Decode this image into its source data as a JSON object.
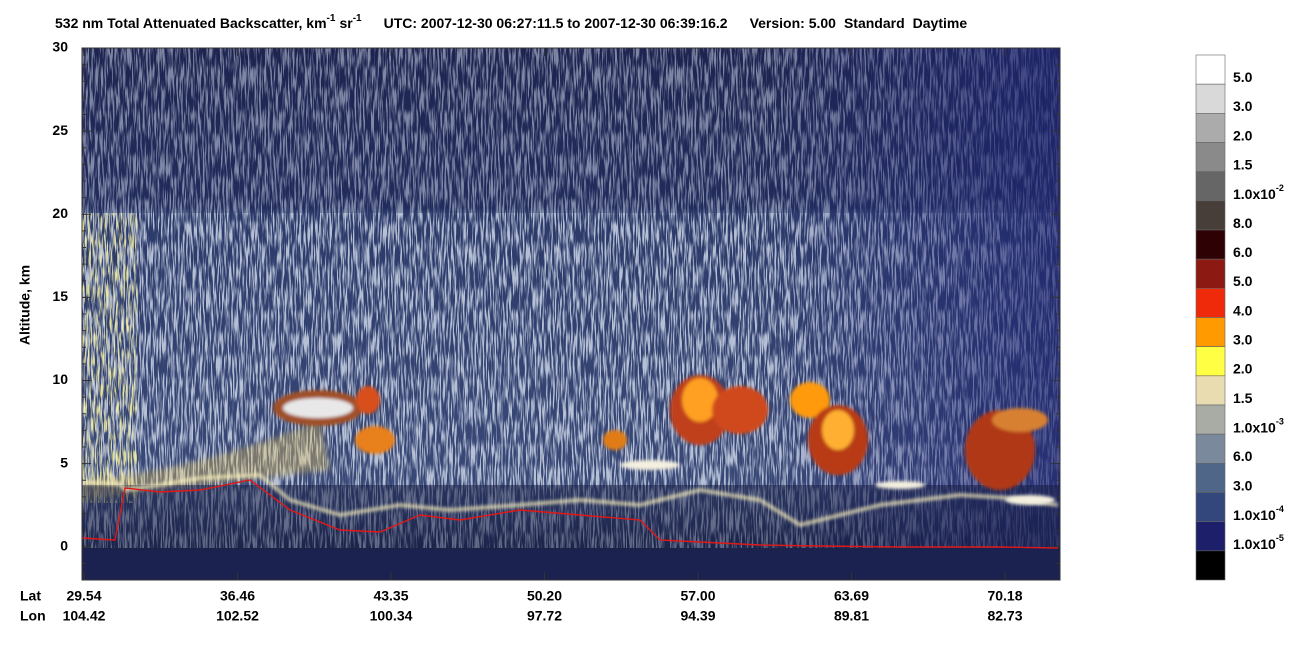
{
  "chart_data": {
    "type": "heatmap",
    "title": {
      "main": "532 nm Total Attenuated Backscatter, km",
      "exp1": "-1",
      "unit2": "sr",
      "exp2": "-1",
      "utc": "UTC:  2007-12-30 06:27:11.5  to  2007-12-30 06:39:16.2",
      "version": "Version: 5.00",
      "mode": "Standard",
      "light": "Daytime"
    },
    "y_label": "Altitude, km",
    "ylim": [
      -2,
      30
    ],
    "yticks": [
      0,
      5,
      10,
      15,
      20,
      25,
      30
    ],
    "x_row_names": [
      "Lat",
      "Lon"
    ],
    "categories": {
      "lat": [
        "29.54",
        "36.46",
        "43.35",
        "50.20",
        "57.00",
        "63.69",
        "70.18"
      ],
      "lon": [
        "104.42",
        "102.52",
        "100.34",
        "97.72",
        "94.39",
        "89.81",
        "82.73"
      ]
    },
    "colorbar": {
      "colors": [
        "#ffffff",
        "#d9d9d9",
        "#ababab",
        "#8a8a8a",
        "#666666",
        "#473e3a",
        "#2e0204",
        "#8c1a12",
        "#ee2a0a",
        "#ff9a00",
        "#ffff44",
        "#e9dcb0",
        "#a9aca4",
        "#7a8a9c",
        "#506689",
        "#34477c",
        "#1e1f6b",
        "#000000"
      ],
      "labels": [
        "5.0",
        "3.0",
        "2.0",
        "1.5",
        {
          "base": "1.0x10",
          "sup": "-2"
        },
        "8.0",
        "6.0",
        "5.0",
        "4.0",
        "3.0",
        "2.0",
        "1.5",
        {
          "base": "1.0x10",
          "sup": "-3"
        },
        "6.0",
        "3.0",
        {
          "base": "1.0x10",
          "sup": "-4"
        },
        {
          "base": "1.0x10",
          "sup": "-5"
        }
      ]
    }
  }
}
